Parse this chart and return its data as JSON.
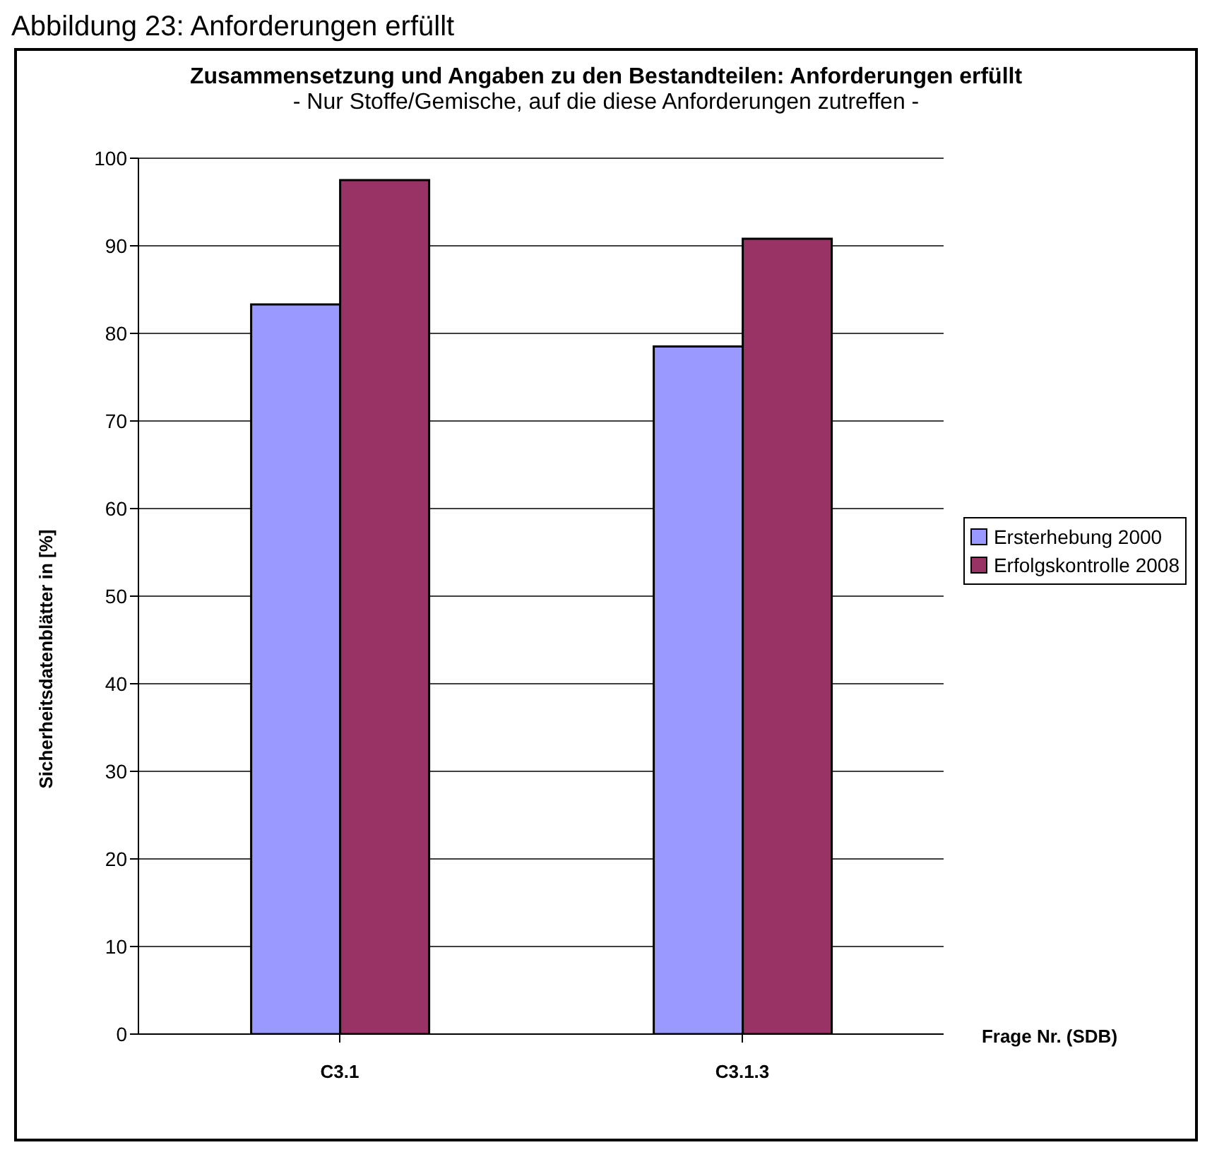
{
  "chart_data": {
    "type": "bar",
    "title": "Zusammensetzung und Angaben zu den Bestandteilen: Anforderungen erfüllt",
    "subtitle": "- Nur Stoffe/Gemische, auf die diese Anforderungen zutreffen -",
    "annotations": [
      "Abbildung 23: Anforderungen erfüllt"
    ],
    "xlabel": "Frage Nr. (SDB)",
    "ylabel": "Sicherheitsdatenblätter in [%]",
    "categories": [
      "C3.1",
      "C3.1.3"
    ],
    "series": [
      {
        "name": "Ersterhebung 2000",
        "color": "#9999ff",
        "values": [
          83.3,
          78.5
        ]
      },
      {
        "name": "Erfolgskontrolle 2008",
        "color": "#993366",
        "values": [
          97.5,
          90.8
        ]
      }
    ],
    "ylim": [
      0,
      100
    ],
    "yticks": [
      0,
      10,
      20,
      30,
      40,
      50,
      60,
      70,
      80,
      90,
      100
    ],
    "grid": "y",
    "legend": "right"
  }
}
